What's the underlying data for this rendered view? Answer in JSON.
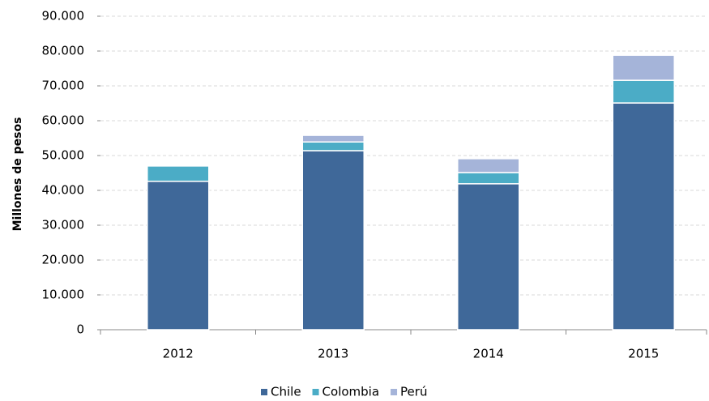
{
  "chart_data": {
    "type": "stacked_bar",
    "y_label": "Millones de pesos",
    "categories": [
      "2012",
      "2013",
      "2014",
      "2015"
    ],
    "series": [
      {
        "name": "Chile",
        "color": "#3f6899",
        "values": [
          42600,
          51400,
          41900,
          65100
        ]
      },
      {
        "name": "Colombia",
        "color": "#4bacc6",
        "values": [
          4400,
          2500,
          3200,
          6500
        ]
      },
      {
        "name": "Perú",
        "color": "#a5b4d9",
        "values": [
          0,
          1900,
          4000,
          7200
        ]
      }
    ],
    "ylim": [
      0,
      90000
    ],
    "yticks": [
      0,
      {
        "value": 10000,
        "label": "10.000"
      },
      {
        "value": 20000,
        "label": "20.000"
      },
      {
        "value": 30000,
        "label": "30.000"
      },
      {
        "value": 40000,
        "label": "40.000"
      },
      {
        "value": 50000,
        "label": "50.000"
      },
      {
        "value": 60000,
        "label": "60.000"
      },
      {
        "value": 70000,
        "label": "70.000"
      },
      {
        "value": 80000,
        "label": "80.000"
      },
      {
        "value": 90000,
        "label": "90.000"
      }
    ],
    "grid": true,
    "legend": "bottom"
  }
}
